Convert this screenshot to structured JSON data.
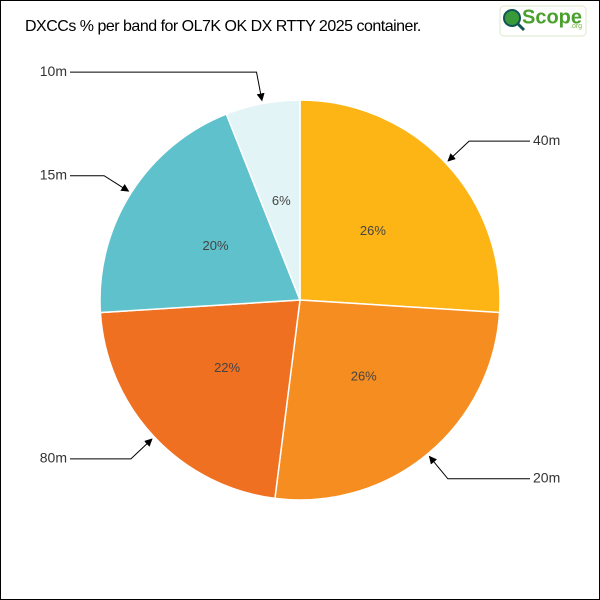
{
  "chart_data": {
    "type": "pie",
    "title": "DXCCs % per band for OL7K OK DX RTTY 2025 container.",
    "logo": {
      "text": "Scope",
      "suffix": ".org"
    },
    "categories": [
      "40m",
      "20m",
      "80m",
      "15m",
      "10m"
    ],
    "values": [
      26,
      26,
      22,
      20,
      6
    ],
    "value_labels": [
      "26%",
      "26%",
      "22%",
      "20%",
      "6%"
    ],
    "colors": [
      "#fdb515",
      "#f68d20",
      "#f07022",
      "#5fc1cb",
      "#e3f4f7"
    ]
  }
}
